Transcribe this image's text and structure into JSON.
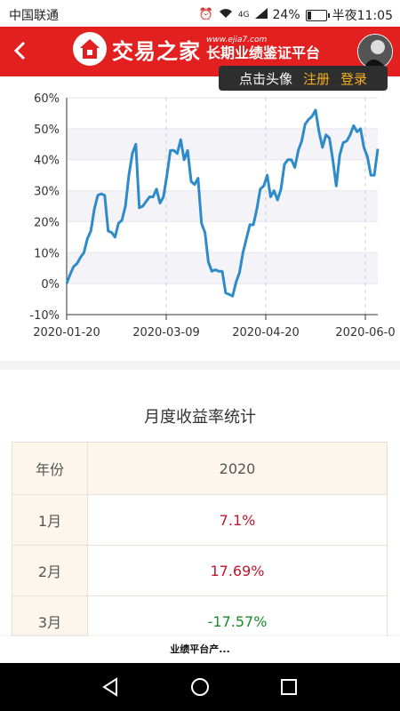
{
  "status_bar": {
    "carrier": "中国联通",
    "network_label": "4G",
    "battery_percent": "24%",
    "battery_level": 0.24,
    "time": "半夜11:05"
  },
  "header": {
    "logo_name": "交易之家",
    "logo_url": "www.ejia7.com",
    "logo_slogan": "长期业绩鉴证平台",
    "brand_color": "#e1201f",
    "back_icon": "chevron-left-icon"
  },
  "auth_popup": {
    "hint": "点击头像",
    "register": "注册",
    "login": "登录"
  },
  "chart_data": {
    "type": "line",
    "title": "",
    "xlabel": "",
    "ylabel": "",
    "x_ticks": [
      "2020-01-20",
      "2020-03-09",
      "2020-04-20",
      "2020-06-0"
    ],
    "y_ticks": [
      "60%",
      "50%",
      "40%",
      "30%",
      "20%",
      "10%",
      "0%",
      "-10%"
    ],
    "ylim": [
      -10,
      60
    ],
    "grid": "horizontal bands",
    "line_color": "#2e8bc9",
    "series": [
      {
        "values": [
          0,
          3,
          5.5,
          6.5,
          8.5,
          10,
          14.5,
          17,
          24,
          28.5,
          29,
          28.5,
          17,
          16.5,
          15,
          19.5,
          20.5,
          25,
          35,
          42,
          45,
          24.5,
          25,
          26.5,
          28,
          28,
          30.5,
          26,
          28,
          35,
          43,
          43,
          42,
          46.5,
          40,
          43,
          33,
          32,
          34,
          19.5,
          16.5,
          7,
          4,
          4.5,
          4,
          4,
          -3,
          -3.5,
          -4,
          0.5,
          3.5,
          10,
          14.5,
          19,
          19,
          24,
          30.5,
          31.5,
          35,
          28,
          30,
          27,
          30.5,
          38.5,
          40,
          40,
          37.5,
          43,
          46,
          51.5,
          53,
          54,
          56,
          49,
          44,
          48,
          47,
          40,
          31.5,
          41.5,
          45.5,
          46,
          48,
          51,
          49,
          50,
          44,
          41,
          35,
          35,
          43.5
        ]
      }
    ]
  },
  "monthly": {
    "title": "月度收益率统计",
    "col_year": "年份",
    "year": "2020",
    "rows": [
      {
        "month": "1月",
        "value": "7.1%"
      },
      {
        "month": "2月",
        "value": "17.69%"
      },
      {
        "month": "3月",
        "value": "-17.57%"
      }
    ]
  },
  "bottom_banner": "业绩平台产...",
  "nav": {
    "back_icon": "triangle-back-icon",
    "home_icon": "circle-home-icon",
    "recents_icon": "square-recents-icon"
  }
}
